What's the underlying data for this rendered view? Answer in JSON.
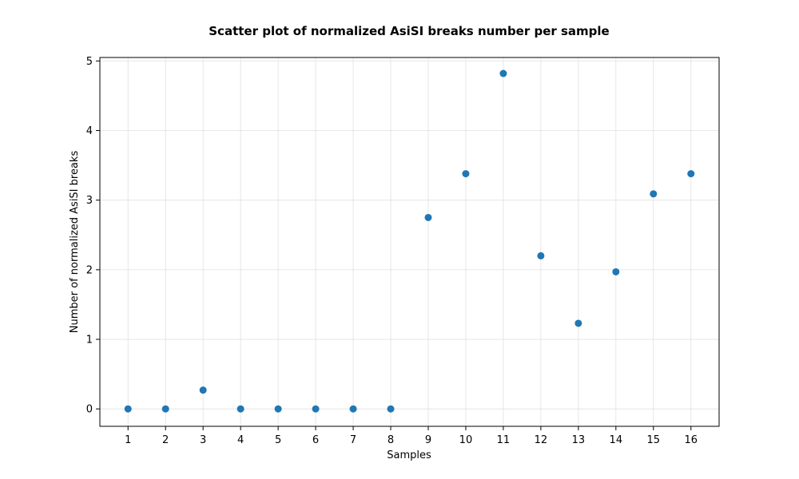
{
  "chart_data": {
    "type": "scatter",
    "title": "Scatter plot of normalized AsiSI breaks number per sample",
    "xlabel": "Samples",
    "ylabel": "Number of normalized AsiSI breaks",
    "x": [
      1,
      2,
      3,
      4,
      5,
      6,
      7,
      8,
      9,
      10,
      11,
      12,
      13,
      14,
      15,
      16
    ],
    "y": [
      0,
      0,
      0.27,
      0,
      0,
      0,
      0,
      0,
      2.75,
      3.38,
      4.82,
      2.2,
      1.23,
      1.97,
      3.09,
      3.38
    ],
    "xticks": [
      "1",
      "2",
      "3",
      "4",
      "5",
      "6",
      "7",
      "8",
      "9",
      "10",
      "11",
      "12",
      "13",
      "14",
      "15",
      "16"
    ],
    "yticks": [
      "0",
      "1",
      "2",
      "3",
      "4",
      "5"
    ],
    "xlim": [
      0.25,
      16.75
    ],
    "ylim": [
      -0.25,
      5.05
    ],
    "grid": true,
    "marker_color": "#1f77b4"
  }
}
